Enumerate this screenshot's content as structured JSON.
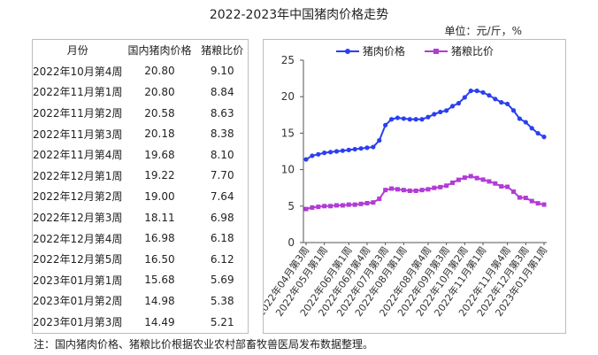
{
  "title": "2022-2023年中国猪肉价格走势",
  "unit_label": "单位：元/斤，%",
  "note": "注：国内猪肉价格、猪粮比价根据农业农村部畜牧兽医局发布数据整理。",
  "table": {
    "headers": [
      "月份",
      "国内猪肉价格",
      "猪粮比价"
    ],
    "rows": [
      [
        "2022年10月第4周",
        "20.80",
        "9.10"
      ],
      [
        "2022年11月第1周",
        "20.80",
        "8.84"
      ],
      [
        "2022年11月第2周",
        "20.58",
        "8.63"
      ],
      [
        "2022年11月第3周",
        "20.18",
        "8.38"
      ],
      [
        "2022年11月第4周",
        "19.68",
        "8.10"
      ],
      [
        "2022年12月第1周",
        "19.22",
        "7.70"
      ],
      [
        "2022年12月第2周",
        "19.00",
        "7.64"
      ],
      [
        "2022年12月第3周",
        "18.11",
        "6.98"
      ],
      [
        "2022年12月第4周",
        "16.98",
        "6.18"
      ],
      [
        "2022年12月第5周",
        "16.50",
        "6.12"
      ],
      [
        "2023年01月第1周",
        "15.68",
        "5.69"
      ],
      [
        "2023年01月第2周",
        "14.98",
        "5.38"
      ],
      [
        "2023年01月第3周",
        "14.49",
        "5.21"
      ]
    ]
  },
  "chart_data": {
    "type": "line",
    "ylim": [
      0,
      25
    ],
    "yticks": [
      "0",
      "5",
      "10",
      "15",
      "20",
      "25"
    ],
    "x_tick_labels": [
      "2022年04月第3周",
      "2022年05月第1周",
      "2022年06月第1周",
      "2022年06月第4周",
      "2022年07月第3周",
      "2022年08月第1周",
      "2022年08月第4周",
      "2022年09月第3周",
      "2022年10月第2周",
      "2022年11月第1周",
      "2022年11月第4周",
      "2022年12月第3周",
      "2023年01月第1周"
    ],
    "legend_position": "top",
    "series": [
      {
        "name": "猪肉价格",
        "color": "#2b3ff0",
        "marker": "circle",
        "values": [
          11.4,
          11.9,
          12.1,
          12.3,
          12.4,
          12.5,
          12.6,
          12.7,
          12.8,
          12.9,
          13.0,
          13.1,
          14.0,
          16.1,
          16.9,
          17.1,
          17.0,
          16.9,
          16.9,
          16.9,
          17.2,
          17.6,
          17.9,
          18.1,
          18.7,
          19.1,
          19.9,
          20.8,
          20.8,
          20.58,
          20.18,
          19.68,
          19.22,
          19.0,
          18.11,
          16.98,
          16.5,
          15.68,
          14.98,
          14.49
        ]
      },
      {
        "name": "猪粮比价",
        "color": "#b23bd6",
        "marker": "square",
        "values": [
          4.6,
          4.8,
          4.9,
          5.0,
          5.0,
          5.1,
          5.1,
          5.2,
          5.2,
          5.3,
          5.4,
          5.5,
          6.0,
          7.2,
          7.4,
          7.3,
          7.2,
          7.1,
          7.1,
          7.2,
          7.3,
          7.5,
          7.6,
          7.8,
          8.2,
          8.6,
          8.9,
          9.1,
          8.84,
          8.63,
          8.38,
          8.1,
          7.7,
          7.64,
          6.98,
          6.18,
          6.12,
          5.69,
          5.38,
          5.21
        ]
      }
    ]
  }
}
